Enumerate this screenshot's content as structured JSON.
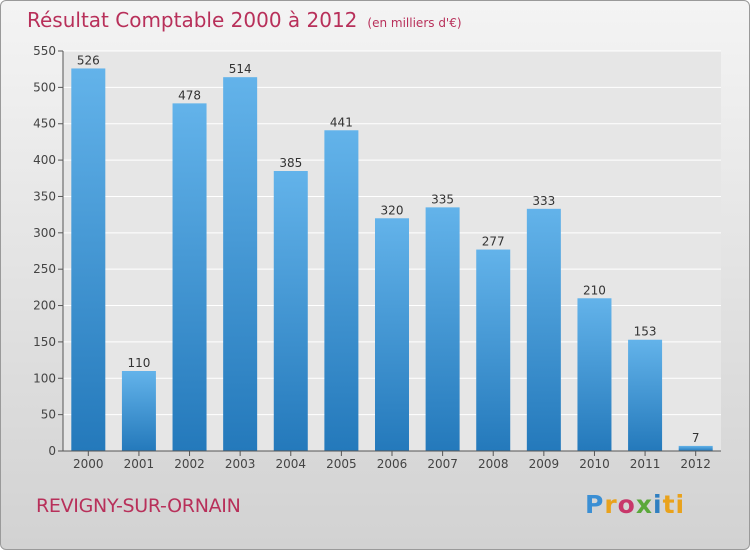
{
  "title": "Résultat Comptable 2000 à 2012",
  "subtitle": "(en milliers d'€)",
  "town": "REVIGNY-SUR-ORNAIN",
  "logo_text": "Proxiti",
  "colors": {
    "title": "#b8305a",
    "bar_light": "#63b3ea",
    "bar_dark": "#2479bb"
  },
  "chart_data": {
    "type": "bar",
    "title": "Résultat Comptable 2000 à 2012",
    "subtitle": "(en milliers d'€)",
    "categories": [
      "2000",
      "2001",
      "2002",
      "2003",
      "2004",
      "2005",
      "2006",
      "2007",
      "2008",
      "2009",
      "2010",
      "2011",
      "2012"
    ],
    "values": [
      526,
      110,
      478,
      514,
      385,
      441,
      320,
      335,
      277,
      333,
      210,
      153,
      7
    ],
    "ylim": [
      0,
      550
    ],
    "yticks": [
      0,
      50,
      100,
      150,
      200,
      250,
      300,
      350,
      400,
      450,
      500,
      550
    ],
    "grid": true,
    "data_labels": true
  }
}
